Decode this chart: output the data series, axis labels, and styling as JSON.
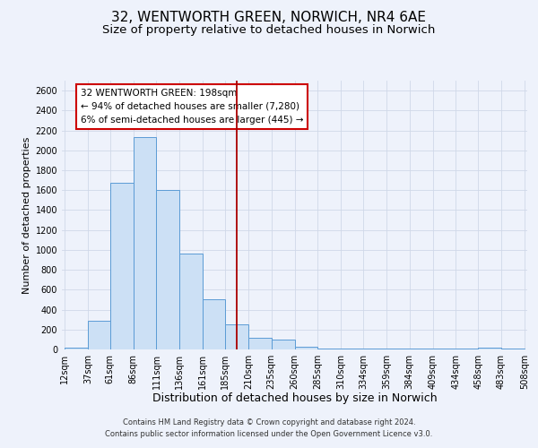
{
  "title": "32, WENTWORTH GREEN, NORWICH, NR4 6AE",
  "subtitle": "Size of property relative to detached houses in Norwich",
  "xlabel": "Distribution of detached houses by size in Norwich",
  "ylabel": "Number of detached properties",
  "bin_edges": [
    12,
    37,
    61,
    86,
    111,
    136,
    161,
    185,
    210,
    235,
    260,
    285,
    310,
    334,
    359,
    384,
    409,
    434,
    458,
    483,
    508
  ],
  "bar_heights": [
    15,
    290,
    1670,
    2130,
    1600,
    960,
    505,
    255,
    120,
    95,
    30,
    10,
    5,
    5,
    5,
    5,
    5,
    5,
    20,
    5
  ],
  "bar_facecolor": "#cce0f5",
  "bar_edgecolor": "#5b9bd5",
  "grid_color": "#d0d8e8",
  "background_color": "#eef2fb",
  "vline_x": 198,
  "vline_color": "#aa0000",
  "annotation_title": "32 WENTWORTH GREEN: 198sqm",
  "annotation_line1": "← 94% of detached houses are smaller (7,280)",
  "annotation_line2": "6% of semi-detached houses are larger (445) →",
  "annotation_box_edgecolor": "#cc0000",
  "annotation_box_facecolor": "#ffffff",
  "ylim": [
    0,
    2700
  ],
  "yticks": [
    0,
    200,
    400,
    600,
    800,
    1000,
    1200,
    1400,
    1600,
    1800,
    2000,
    2200,
    2400,
    2600
  ],
  "footnote1": "Contains HM Land Registry data © Crown copyright and database right 2024.",
  "footnote2": "Contains public sector information licensed under the Open Government Licence v3.0.",
  "title_fontsize": 11,
  "subtitle_fontsize": 9.5,
  "xlabel_fontsize": 9,
  "ylabel_fontsize": 8,
  "tick_fontsize": 7,
  "annotation_fontsize": 7.5,
  "footnote_fontsize": 6
}
